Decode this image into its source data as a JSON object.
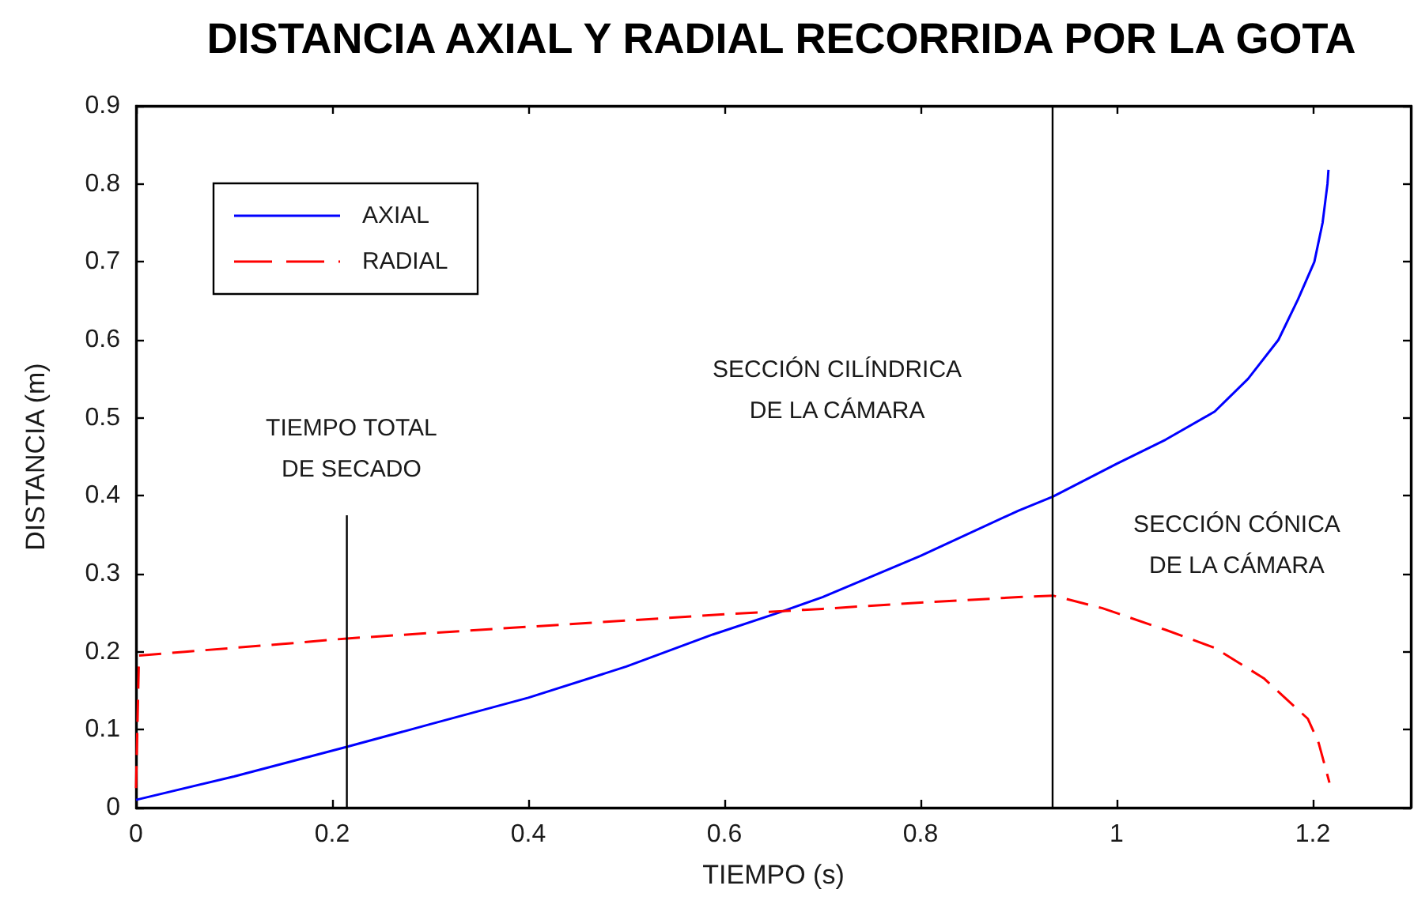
{
  "chart_data": {
    "type": "line",
    "title": "DISTANCIA AXIAL Y RADIAL RECORRIDA POR LA GOTA",
    "xlabel": "TIEMPO (s)",
    "ylabel": "DISTANCIA (m)",
    "xlim": [
      0,
      1.3
    ],
    "xticks": [
      0,
      0.2,
      0.4,
      0.6,
      0.8,
      1,
      1.2
    ],
    "ylim": [
      0,
      0.9
    ],
    "yticks": [
      0,
      0.1,
      0.2,
      0.3,
      0.4,
      0.5,
      0.6,
      0.7,
      0.8,
      0.9
    ],
    "legend": "top left",
    "series": [
      {
        "name": "AXIAL",
        "color": "#0000ff",
        "line_style": "solid",
        "x": [
          0,
          0.1,
          0.215,
          0.3,
          0.4,
          0.5,
          0.588,
          0.655,
          0.7,
          0.8,
          0.9,
          0.935,
          1.0,
          1.05,
          1.1,
          1.134,
          1.165,
          1.185,
          1.2016,
          1.21,
          1.215,
          1.216
        ],
        "values": [
          0.01,
          0.04,
          0.078,
          0.107,
          0.141,
          0.181,
          0.222,
          0.25,
          0.27,
          0.323,
          0.381,
          0.399,
          0.441,
          0.472,
          0.508,
          0.55,
          0.6,
          0.652,
          0.7,
          0.75,
          0.8,
          0.818
        ]
      },
      {
        "name": "RADIAL",
        "color": "#ff0000",
        "line_style": "dashed",
        "x": [
          0,
          0.003,
          0.05,
          0.1,
          0.15,
          0.215,
          0.3,
          0.4,
          0.5,
          0.6,
          0.7,
          0.8,
          0.9,
          0.935,
          0.985,
          1.05,
          1.1,
          1.15,
          1.195,
          1.206,
          1.217
        ],
        "values": [
          0.025,
          0.195,
          0.2,
          0.205,
          0.21,
          0.217,
          0.224,
          0.232,
          0.24,
          0.248,
          0.255,
          0.263,
          0.27,
          0.272,
          0.256,
          0.228,
          0.205,
          0.166,
          0.114,
          0.083,
          0.032
        ]
      },
      {
        "type": "line",
        "color": "#000000",
        "line_style": "solid",
        "x": [
          0.215,
          0.215
        ],
        "values": [
          0,
          0.375
        ]
      }
    ],
    "ref_lines": [
      {
        "axis": "x",
        "value": 0.935,
        "color": "#000000",
        "line_style": "solid"
      }
    ],
    "annotations": [
      "TIEMPO TOTAL\nDE SECADO",
      "SECCIÓN CILÍNDRICA\nDE LA CÁMARA",
      "SECCIÓN CÓNICA\nDE LA CÁMARA"
    ]
  }
}
